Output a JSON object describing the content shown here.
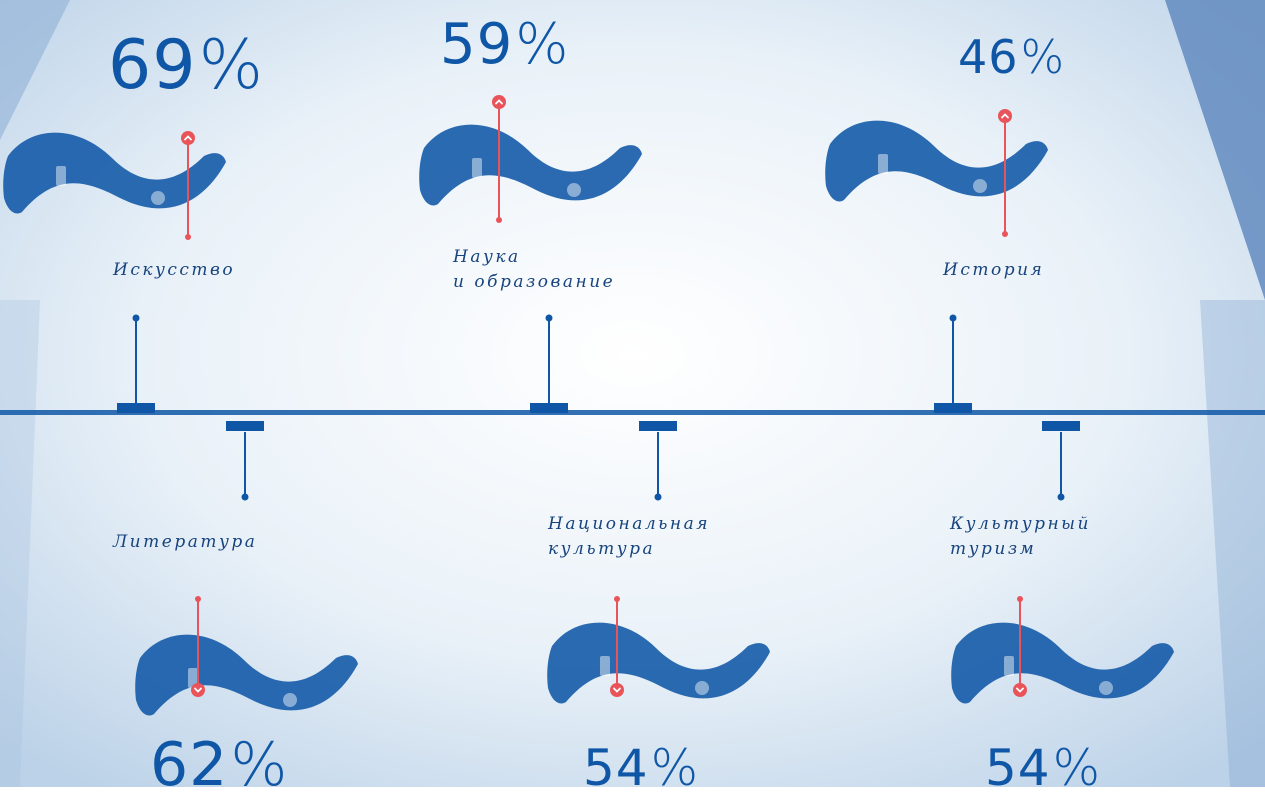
{
  "chart_data": {
    "type": "bar",
    "unit": "%",
    "categories": [
      "Искусство",
      "Литература",
      "Наука\nи образование",
      "Национальная\nкультура",
      "История",
      "Культурный\nтуризм"
    ],
    "values": [
      69,
      62,
      59,
      54,
      46,
      54
    ],
    "colors": {
      "primary": "#0f57a6",
      "accent": "#e8545a",
      "label": "#17447e",
      "background": "#dfeaf4"
    }
  }
}
